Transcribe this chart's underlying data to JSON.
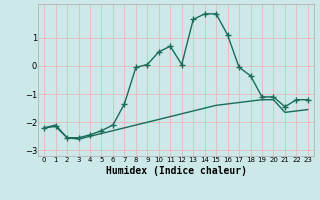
{
  "xlabel": "Humidex (Indice chaleur)",
  "x": [
    0,
    1,
    2,
    3,
    4,
    5,
    6,
    7,
    8,
    9,
    10,
    11,
    12,
    13,
    14,
    15,
    16,
    17,
    18,
    19,
    20,
    21,
    22,
    23
  ],
  "line1_y": [
    -2.2,
    -2.15,
    -2.55,
    -2.55,
    -2.45,
    -2.3,
    -2.1,
    -1.35,
    -0.05,
    0.05,
    0.5,
    0.7,
    0.05,
    1.65,
    1.85,
    1.85,
    1.1,
    -0.05,
    -0.35,
    -1.1,
    -1.1,
    -1.45,
    -1.2,
    -1.2
  ],
  "line2_y": [
    -2.2,
    -2.1,
    -2.55,
    -2.6,
    -2.5,
    -2.4,
    -2.3,
    -2.2,
    -2.1,
    -2.0,
    -1.9,
    -1.8,
    -1.7,
    -1.6,
    -1.5,
    -1.4,
    -1.35,
    -1.3,
    -1.25,
    -1.2,
    -1.2,
    -1.65,
    -1.6,
    -1.55
  ],
  "xlim": [
    -0.5,
    23.5
  ],
  "ylim": [
    -3.2,
    2.2
  ],
  "yticks": [
    -3,
    -2,
    -1,
    0,
    1
  ],
  "xtick_labels": [
    "0",
    "1",
    "2",
    "3",
    "4",
    "5",
    "6",
    "7",
    "8",
    "9",
    "10",
    "11",
    "12",
    "13",
    "14",
    "15",
    "16",
    "17",
    "18",
    "19",
    "20",
    "21",
    "22",
    "23"
  ],
  "line_color": "#1a6b5a",
  "marker": "+",
  "bg_color": "#cce8e8",
  "grid_color": "#e8b8b8",
  "marker_size": 4,
  "line_width": 1.0
}
